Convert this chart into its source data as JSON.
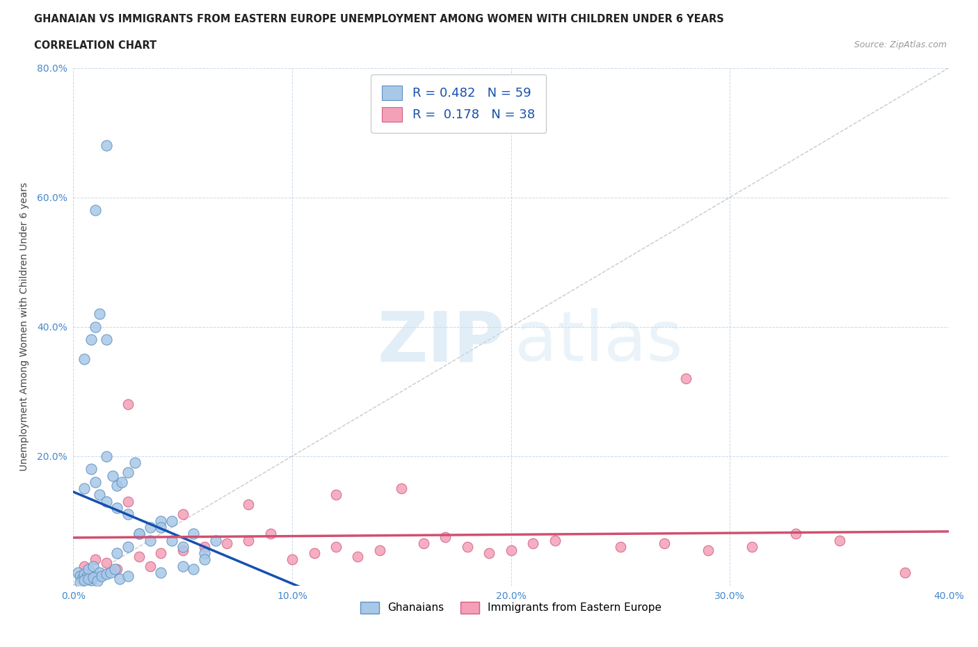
{
  "title_line1": "GHANAIAN VS IMMIGRANTS FROM EASTERN EUROPE UNEMPLOYMENT AMONG WOMEN WITH CHILDREN UNDER 6 YEARS",
  "title_line2": "CORRELATION CHART",
  "source_text": "Source: ZipAtlas.com",
  "ylabel": "Unemployment Among Women with Children Under 6 years",
  "xlim": [
    0.0,
    0.4
  ],
  "ylim": [
    0.0,
    0.8
  ],
  "xticks": [
    0.0,
    0.1,
    0.2,
    0.3,
    0.4
  ],
  "xticklabels": [
    "0.0%",
    "10.0%",
    "20.0%",
    "30.0%",
    "40.0%"
  ],
  "yticks": [
    0.0,
    0.2,
    0.4,
    0.6,
    0.8
  ],
  "yticklabels": [
    "",
    "20.0%",
    "40.0%",
    "60.0%",
    "80.0%"
  ],
  "ghanaian_color": "#a8c8e8",
  "eastern_europe_color": "#f4a0b8",
  "ghanaian_edge": "#6090c0",
  "eastern_europe_edge": "#d06080",
  "trend_ghanaian_color": "#1550b0",
  "trend_eastern_europe_color": "#d05070",
  "diagonal_color": "#bbbbbb",
  "R_ghanaian": 0.482,
  "N_ghanaian": 59,
  "R_eastern": 0.178,
  "N_eastern": 38,
  "background_color": "#ffffff",
  "ghanaian_x": [
    0.002,
    0.003,
    0.004,
    0.005,
    0.006,
    0.007,
    0.008,
    0.009,
    0.01,
    0.012,
    0.005,
    0.008,
    0.01,
    0.012,
    0.015,
    0.018,
    0.02,
    0.022,
    0.025,
    0.028,
    0.005,
    0.008,
    0.01,
    0.012,
    0.015,
    0.003,
    0.005,
    0.007,
    0.009,
    0.011,
    0.013,
    0.015,
    0.017,
    0.019,
    0.021,
    0.025,
    0.03,
    0.035,
    0.04,
    0.045,
    0.05,
    0.055,
    0.06,
    0.065,
    0.02,
    0.025,
    0.03,
    0.035,
    0.04,
    0.045,
    0.015,
    0.02,
    0.025,
    0.01,
    0.04,
    0.05,
    0.055,
    0.06,
    0.015
  ],
  "ghanaian_y": [
    0.02,
    0.015,
    0.01,
    0.018,
    0.012,
    0.025,
    0.008,
    0.03,
    0.015,
    0.02,
    0.15,
    0.18,
    0.16,
    0.14,
    0.2,
    0.17,
    0.155,
    0.16,
    0.175,
    0.19,
    0.35,
    0.38,
    0.4,
    0.42,
    0.38,
    0.005,
    0.008,
    0.01,
    0.012,
    0.007,
    0.015,
    0.018,
    0.02,
    0.025,
    0.01,
    0.015,
    0.08,
    0.09,
    0.1,
    0.07,
    0.06,
    0.08,
    0.05,
    0.07,
    0.05,
    0.06,
    0.08,
    0.07,
    0.09,
    0.1,
    0.13,
    0.12,
    0.11,
    0.58,
    0.02,
    0.03,
    0.025,
    0.04,
    0.68
  ],
  "eastern_x": [
    0.005,
    0.01,
    0.015,
    0.02,
    0.025,
    0.03,
    0.035,
    0.04,
    0.05,
    0.06,
    0.07,
    0.08,
    0.09,
    0.1,
    0.11,
    0.12,
    0.13,
    0.14,
    0.15,
    0.16,
    0.17,
    0.18,
    0.19,
    0.2,
    0.21,
    0.22,
    0.25,
    0.27,
    0.29,
    0.31,
    0.33,
    0.35,
    0.38,
    0.025,
    0.05,
    0.08,
    0.12,
    0.28
  ],
  "eastern_y": [
    0.03,
    0.04,
    0.035,
    0.025,
    0.28,
    0.045,
    0.03,
    0.05,
    0.055,
    0.06,
    0.065,
    0.07,
    0.08,
    0.04,
    0.05,
    0.06,
    0.045,
    0.055,
    0.15,
    0.065,
    0.075,
    0.06,
    0.05,
    0.055,
    0.065,
    0.07,
    0.06,
    0.065,
    0.055,
    0.06,
    0.08,
    0.07,
    0.02,
    0.13,
    0.11,
    0.125,
    0.14,
    0.32
  ]
}
